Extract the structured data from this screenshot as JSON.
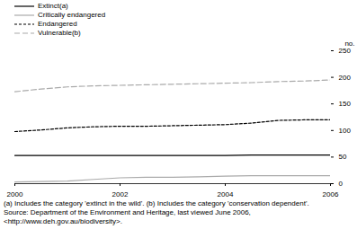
{
  "chart_data": {
    "type": "line",
    "y_label": "no.",
    "x": [
      2000,
      2000.5,
      2001,
      2001.5,
      2002,
      2002.5,
      2003,
      2003.5,
      2004,
      2004.5,
      2005,
      2005.5,
      2006
    ],
    "xlim": [
      2000,
      2006
    ],
    "xticks": [
      2000,
      2002,
      2004,
      2006
    ],
    "ylim": [
      0,
      250
    ],
    "yticks": [
      0,
      50,
      100,
      150,
      200,
      250
    ],
    "grid": false,
    "legend": "top-left",
    "series": [
      {
        "name": "Extinct(a)",
        "color": "#000000",
        "line_style": "solid",
        "values": [
          53,
          53,
          53,
          53,
          53,
          53,
          53,
          53,
          53,
          54,
          54,
          54,
          54
        ]
      },
      {
        "name": "Critically endangered",
        "color": "#aaaaaa",
        "line_style": "solid",
        "values": [
          3,
          4,
          5,
          8,
          11,
          12,
          12,
          13,
          14,
          15,
          15,
          15,
          15
        ]
      },
      {
        "name": "Endangered",
        "color": "#000000",
        "line_style": "dashed",
        "values": [
          98,
          101,
          105,
          107,
          108,
          108,
          109,
          110,
          111,
          114,
          119,
          120,
          120
        ]
      },
      {
        "name": "Vulnerable(b)",
        "color": "#aaaaaa",
        "line_style": "longdash",
        "values": [
          173,
          178,
          182,
          184,
          185,
          186,
          187,
          188,
          189,
          190,
          192,
          193,
          195
        ]
      }
    ],
    "notes": [
      "(a) Includes the category 'extinct in the wild'. (b) Includes the category 'conservation dependent'."
    ],
    "source": "Source: Department of the Environment and Heritage, last viewed June 2006, <http://www.deh.gov.au/biodiversity>."
  }
}
